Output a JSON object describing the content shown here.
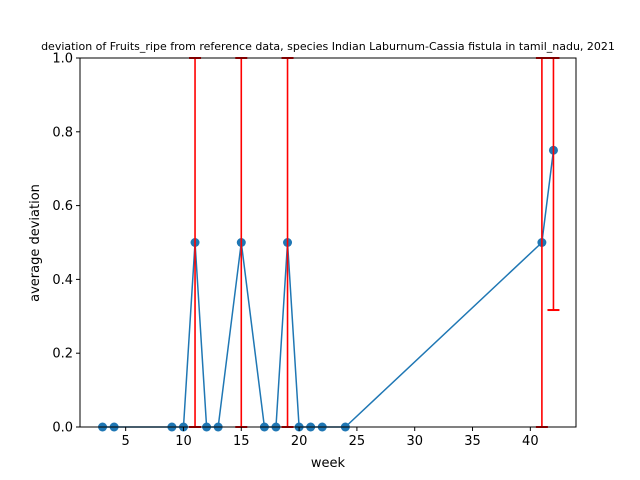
{
  "chart_data": {
    "type": "line",
    "title": "deviation of Fruits_ripe from reference data, species Indian Laburnum-Cassia fistula in tamil_nadu, 2021",
    "xlabel": "week",
    "ylabel": "average deviation",
    "xlim": [
      1.05,
      43.95
    ],
    "ylim": [
      0,
      1
    ],
    "x_ticks": [
      5,
      10,
      15,
      20,
      25,
      30,
      35,
      40
    ],
    "y_ticks": [
      0.0,
      0.2,
      0.4,
      0.6,
      0.8,
      1.0
    ],
    "x_tick_labels": [
      "5",
      "10",
      "15",
      "20",
      "25",
      "30",
      "35",
      "40"
    ],
    "y_tick_labels": [
      "0.0",
      "0.2",
      "0.4",
      "0.6",
      "0.8",
      "1.0"
    ],
    "grid": false,
    "series": [
      {
        "color": "#1f77b4",
        "marker": "circle",
        "x": [
          3,
          4,
          9,
          10,
          11,
          12,
          13,
          15,
          17,
          18,
          19,
          20,
          21,
          22,
          24,
          41,
          42
        ],
        "y": [
          0,
          0,
          0,
          0,
          0.5,
          0,
          0,
          0.5,
          0,
          0,
          0.5,
          0,
          0,
          0,
          0,
          0.5,
          0.75
        ]
      }
    ],
    "error_bars": {
      "color": "#ff0000",
      "items": [
        {
          "x": 11,
          "low": 0,
          "high": 1
        },
        {
          "x": 15,
          "low": 0,
          "high": 1
        },
        {
          "x": 19,
          "low": 0,
          "high": 1
        },
        {
          "x": 41,
          "low": 0,
          "high": 1
        },
        {
          "x": 42,
          "low": 0.317,
          "high": 1
        }
      ]
    }
  }
}
